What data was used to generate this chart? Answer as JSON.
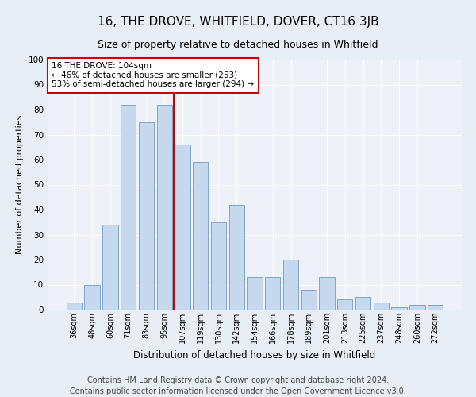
{
  "title": "16, THE DROVE, WHITFIELD, DOVER, CT16 3JB",
  "subtitle": "Size of property relative to detached houses in Whitfield",
  "xlabel": "Distribution of detached houses by size in Whitfield",
  "ylabel": "Number of detached properties",
  "categories": [
    "36sqm",
    "48sqm",
    "60sqm",
    "71sqm",
    "83sqm",
    "95sqm",
    "107sqm",
    "119sqm",
    "130sqm",
    "142sqm",
    "154sqm",
    "166sqm",
    "178sqm",
    "189sqm",
    "201sqm",
    "213sqm",
    "225sqm",
    "237sqm",
    "248sqm",
    "260sqm",
    "272sqm"
  ],
  "values": [
    3,
    10,
    34,
    82,
    75,
    82,
    66,
    59,
    35,
    42,
    13,
    13,
    20,
    8,
    13,
    4,
    5,
    3,
    1,
    2,
    2
  ],
  "bar_color": "#c5d8ed",
  "bar_edge_color": "#7aa8d0",
  "vline_x": 5.5,
  "vline_color": "#cc0000",
  "annotation_text": "16 THE DROVE: 104sqm\n← 46% of detached houses are smaller (253)\n53% of semi-detached houses are larger (294) →",
  "annotation_box_color": "#ffffff",
  "annotation_box_edge_color": "#cc0000",
  "ylim": [
    0,
    100
  ],
  "yticks": [
    0,
    10,
    20,
    30,
    40,
    50,
    60,
    70,
    80,
    90,
    100
  ],
  "footer_line1": "Contains HM Land Registry data © Crown copyright and database right 2024.",
  "footer_line2": "Contains public sector information licensed under the Open Government Licence v3.0.",
  "bg_color": "#e8eef5",
  "plot_bg_color": "#eef2f8",
  "title_fontsize": 11,
  "subtitle_fontsize": 9,
  "xlabel_fontsize": 8.5,
  "ylabel_fontsize": 8,
  "footer_fontsize": 7,
  "tick_fontsize": 7,
  "ytick_fontsize": 7.5
}
